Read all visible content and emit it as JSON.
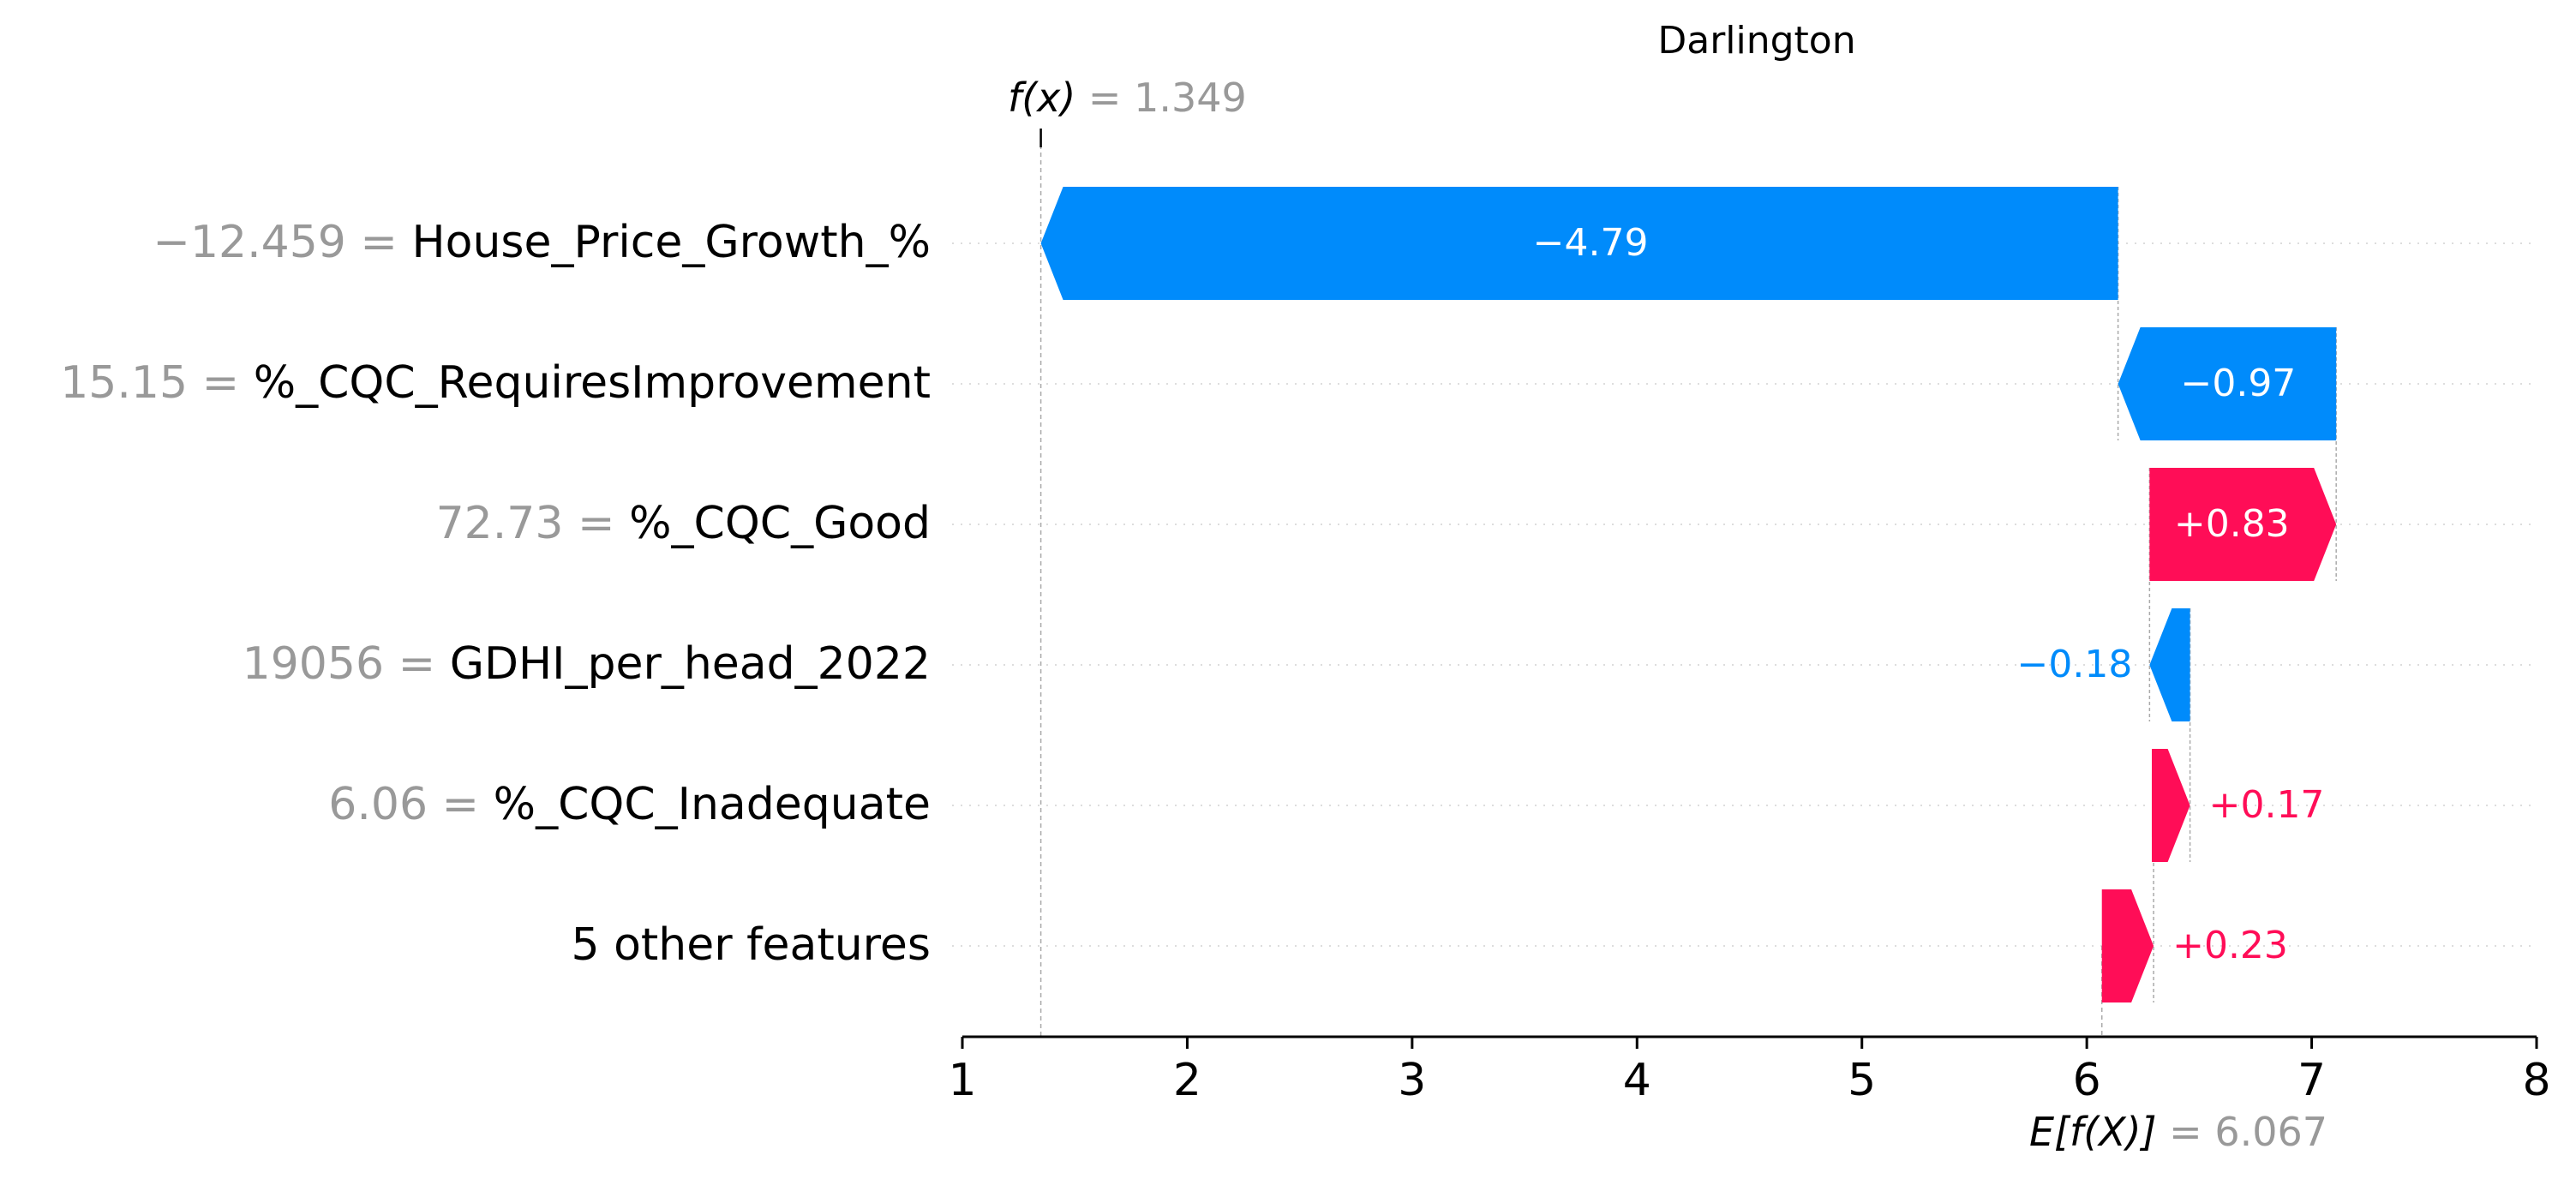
{
  "chart_data": {
    "type": "waterfall",
    "title": "Darlington",
    "xlim": [
      1,
      8
    ],
    "x_ticks": [
      "1",
      "2",
      "3",
      "4",
      "5",
      "6",
      "7",
      "8"
    ],
    "fx": {
      "label": "f(x)",
      "value": "1.349",
      "x": 1.349
    },
    "base": {
      "label": "E[f(X)]",
      "value": "6.067",
      "x": 6.067
    },
    "rows": [
      {
        "value_label": "−12.459",
        "feature": "House_Price_Growth_%",
        "start": 6.139,
        "end": 1.349,
        "contribution": -4.79,
        "text": "−4.79"
      },
      {
        "value_label": "15.15",
        "feature": "%_CQC_RequiresImprovement",
        "start": 7.109,
        "end": 6.139,
        "contribution": -0.97,
        "text": "−0.97"
      },
      {
        "value_label": "72.73",
        "feature": "%_CQC_Good",
        "start": 6.279,
        "end": 7.109,
        "contribution": 0.83,
        "text": "+0.83"
      },
      {
        "value_label": "19056",
        "feature": "GDHI_per_head_2022",
        "start": 6.459,
        "end": 6.279,
        "contribution": -0.18,
        "text": "−0.18"
      },
      {
        "value_label": "6.06",
        "feature": "%_CQC_Inadequate",
        "start": 6.289,
        "end": 6.459,
        "contribution": 0.17,
        "text": "+0.17"
      },
      {
        "value_label": "",
        "feature": "5 other features",
        "start": 6.067,
        "end": 6.297,
        "contribution": 0.23,
        "text": "+0.23"
      }
    ],
    "colors": {
      "positive": "#ff0d57",
      "negative": "#008bfb",
      "value_label": "#999999",
      "text": "#000000"
    }
  }
}
